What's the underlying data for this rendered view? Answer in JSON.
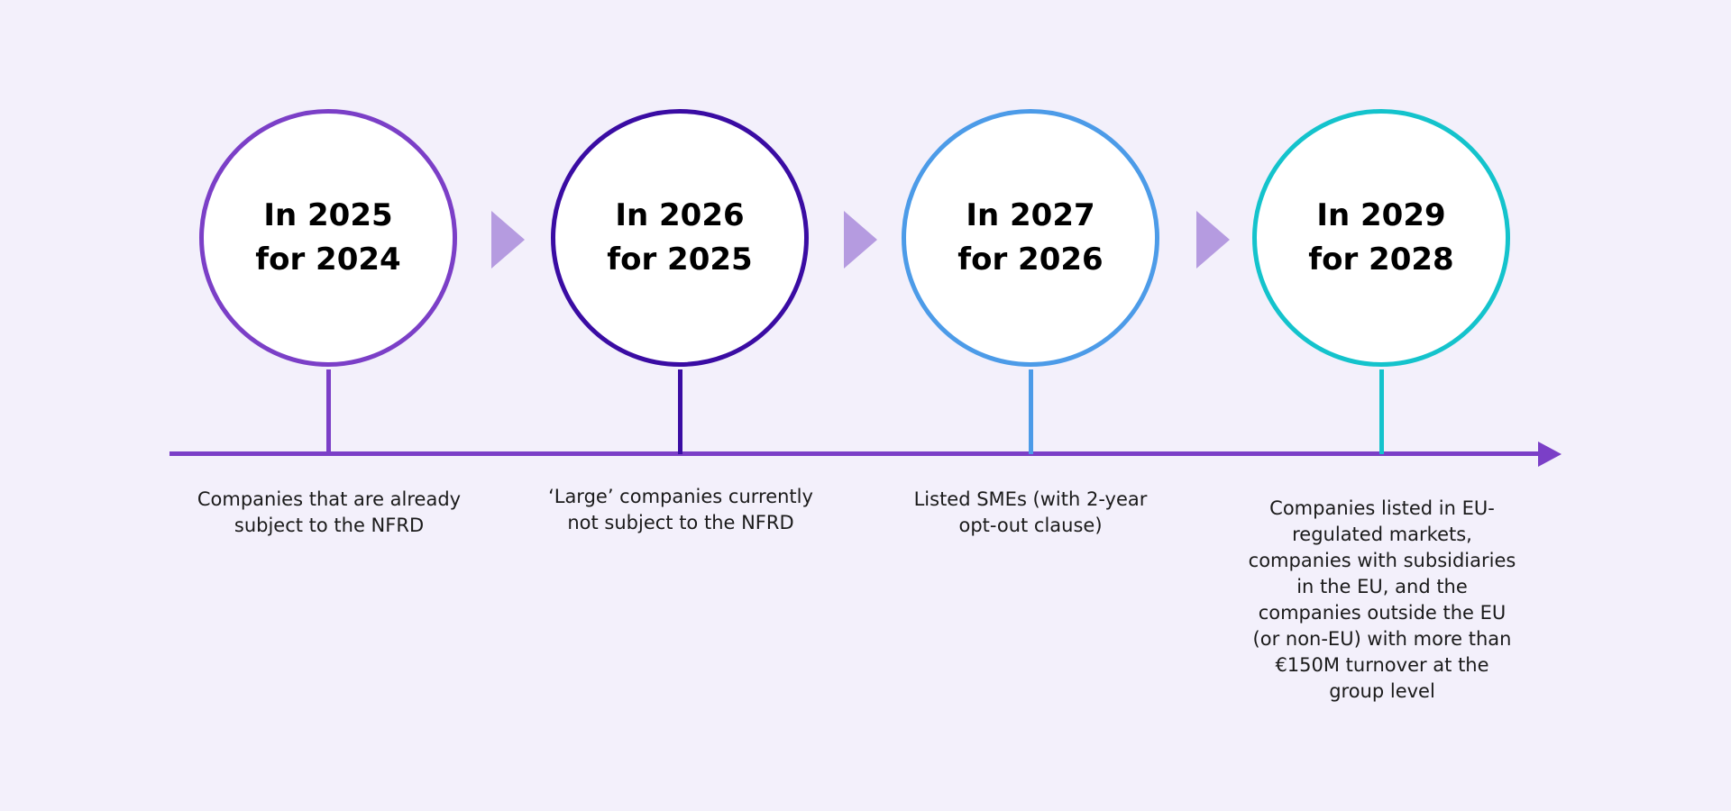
{
  "colors": {
    "background": "#f3f0fb",
    "axis": "#7b3fc7",
    "chevron": "#b59be0",
    "stage_1": "#7b3fc7",
    "stage_2": "#3a0ca3",
    "stage_3": "#4c9be8",
    "stage_4": "#14c3cc"
  },
  "stages": [
    {
      "line1": "In 2025",
      "line2": "for 2024",
      "description": "Companies that are already subject to the NFRD",
      "color": "#7b3fc7"
    },
    {
      "line1": "In 2026",
      "line2": "for 2025",
      "description": "‘Large’ companies currently not subject to the NFRD",
      "color": "#3a0ca3"
    },
    {
      "line1": "In 2027",
      "line2": "for 2026",
      "description": "Listed SMEs (with 2-year opt-out clause)",
      "color": "#4c9be8"
    },
    {
      "line1": "In 2029",
      "line2": "for 2028",
      "description": "Companies listed in EU-regulated markets, companies with subsidiaries in the EU, and the companies outside the EU (or non-EU) with more than €150M turnover at the group level",
      "color": "#14c3cc"
    }
  ]
}
